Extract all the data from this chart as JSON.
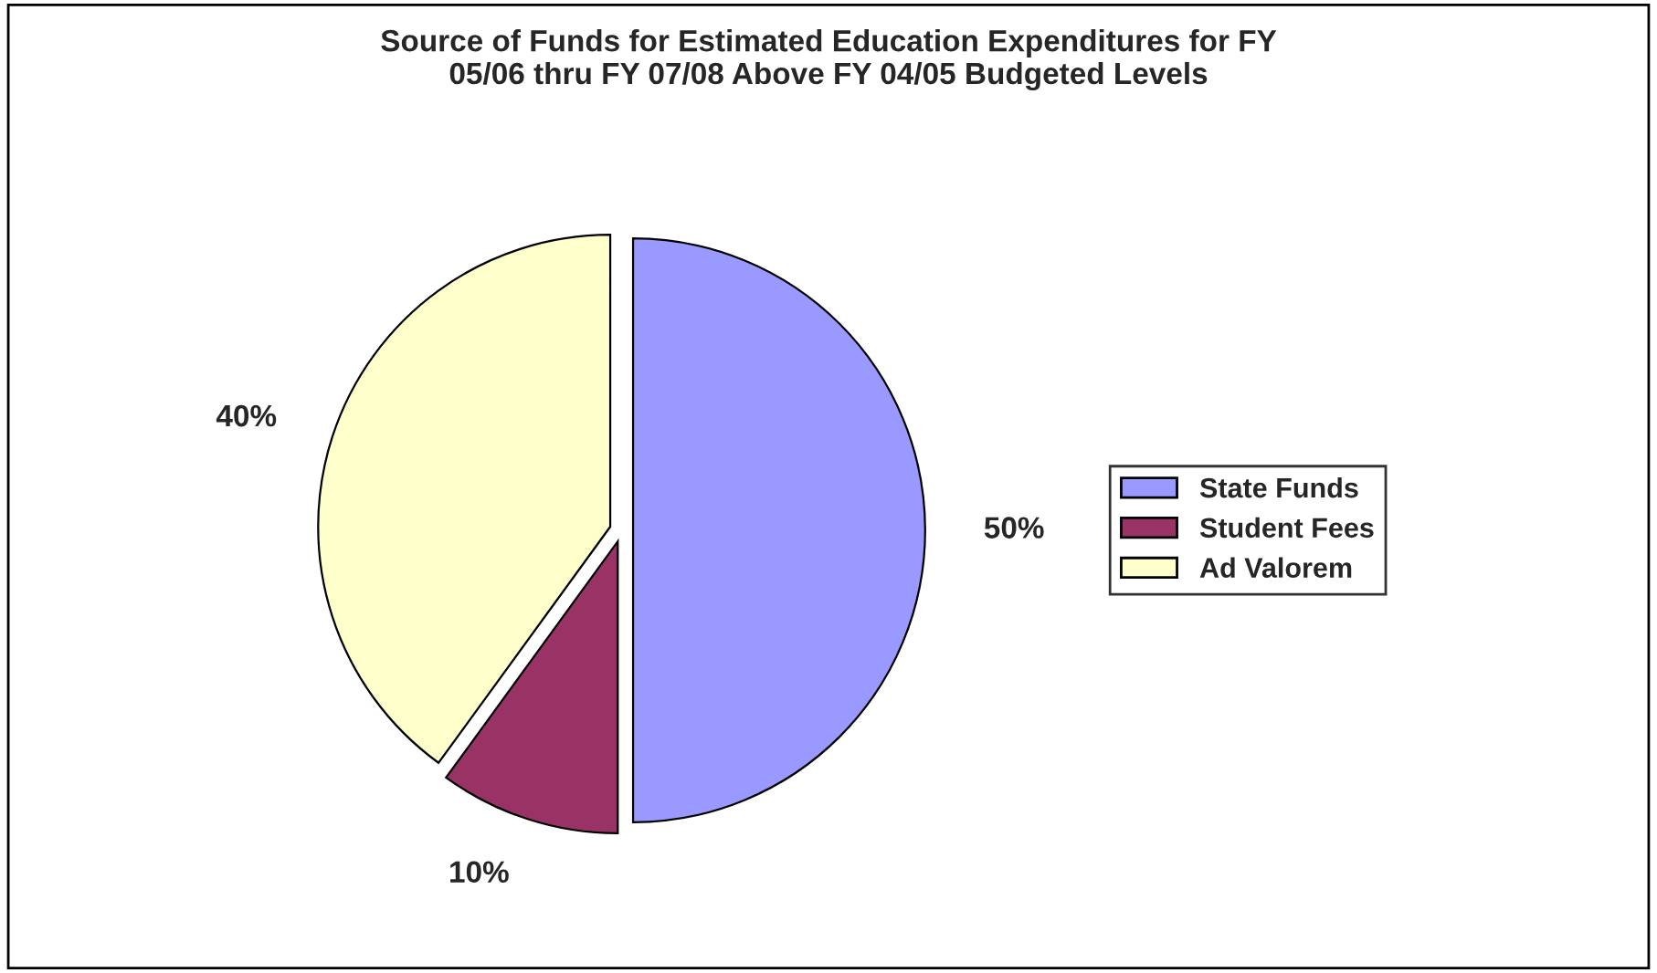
{
  "chart_data": {
    "type": "pie",
    "title": "Source of Funds for Estimated Education Expenditures for FY\n05/06 thru FY 07/08 Above FY 04/05 Budgeted Levels",
    "categories": [
      "State Funds",
      "Student Fees",
      "Ad Valorem"
    ],
    "values": [
      50,
      10,
      40
    ],
    "value_labels": [
      "50%",
      "10%",
      "40%"
    ],
    "colors": [
      "#9999ff",
      "#993366",
      "#ffffcc"
    ],
    "legend": "right"
  }
}
